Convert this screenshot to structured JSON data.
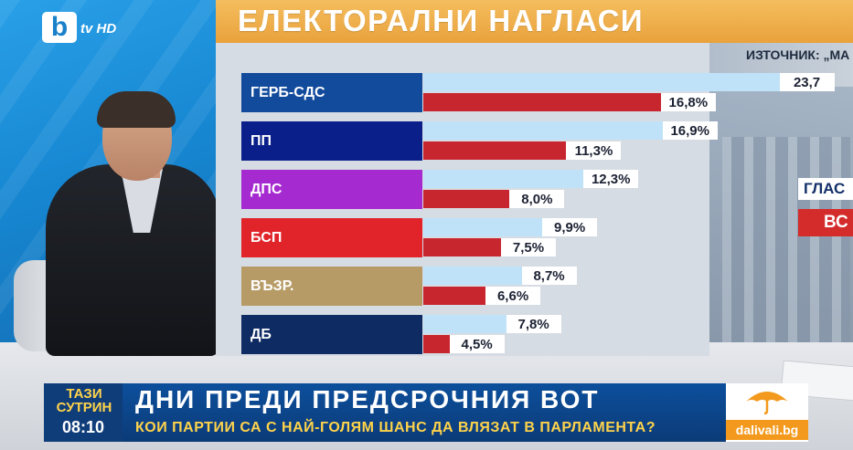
{
  "channel": {
    "logo_letter": "b",
    "logo_text": "tv HD"
  },
  "panel": {
    "title": "ЕЛЕКТОРАЛНИ НАГЛАСИ",
    "source": "ИЗТОЧНИК: „МА",
    "colors": {
      "header": "#e9a23c",
      "bar_previous": "#bfe2f9",
      "bar_current": "#c8262f"
    }
  },
  "chart_data": {
    "type": "bar",
    "orientation": "horizontal",
    "categories": [
      "ГЕРБ-СДС",
      "ПП",
      "ДПС",
      "БСП",
      "ВЪЗР.",
      "ДБ"
    ],
    "category_colors": [
      "#124a9c",
      "#0a1f8a",
      "#a52ad0",
      "#e0242a",
      "#b79b66",
      "#0f2b63"
    ],
    "series": [
      {
        "values": [
          23.7,
          16.9,
          12.3,
          9.9,
          8.7,
          7.8
        ],
        "labels": [
          "23,7",
          "16,9%",
          "12,3%",
          "9,9%",
          "8,7%",
          "7,8%"
        ],
        "color": "#bfe2f9"
      },
      {
        "values": [
          16.8,
          11.3,
          8.0,
          7.5,
          6.6,
          4.5
        ],
        "labels": [
          "16,8%",
          "11,3%",
          "8,0%",
          "7,5%",
          "6,6%",
          "4,5%"
        ],
        "color": "#c8262f"
      }
    ],
    "xlim": [
      0,
      25
    ]
  },
  "side_graphic": {
    "glas": "ГЛАС",
    "vs": "ВС"
  },
  "lower_third": {
    "show_name": "ТАЗИ СУТРИН",
    "time": "08:10",
    "headline": "ДНИ ПРЕДИ ПРЕДСРОЧНИЯ ВОТ",
    "subheadline": "КОИ ПАРТИИ СА С НАЙ-ГОЛЯМ ШАНС ДА ВЛЯЗАТ В ПАРЛАМЕНТА?",
    "weather_brand": "dalivali.bg"
  }
}
